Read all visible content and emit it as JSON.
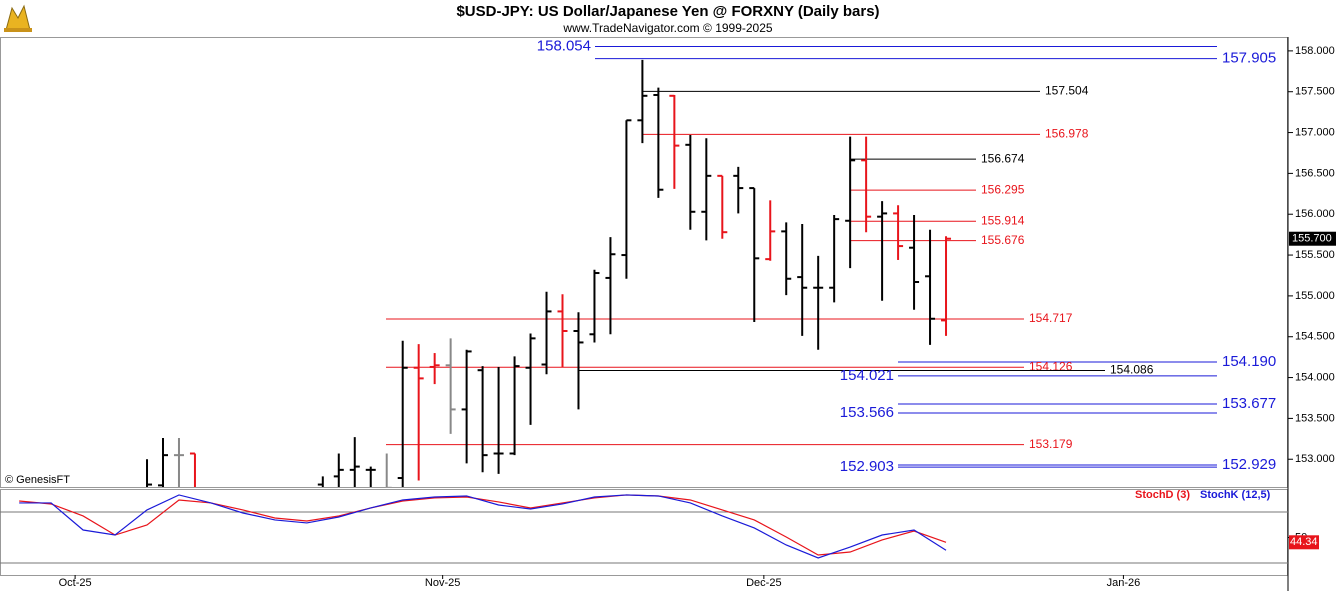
{
  "chart_data": [
    {
      "type": "ohlc",
      "title": "$USD-JPY:  US Dollar/Japanese Yen @ FORXNY  (Daily bars)",
      "subtitle": "www.TradeNavigator.com © 1999-2025",
      "credit": "© GenesisFT",
      "open": [
        152.6,
        152.68,
        153.05,
        153.07,
        null,
        null,
        null,
        null,
        null,
        null,
        null,
        152.69,
        152.79,
        152.87,
        152.87,
        152.6,
        152.77,
        154.12,
        154.13,
        154.15,
        153.61,
        154.09,
        153.07,
        153.07,
        154.12,
        154.16,
        154.81,
        154.57,
        154.53,
        155.22,
        155.5,
        157.15,
        157.46,
        157.45,
        156.85,
        156.03,
        156.47,
        156.47,
        156.32,
        155.45,
        155.79,
        155.23,
        155.1,
        155.1,
        155.92,
        156.66,
        155.97,
        156.01,
        155.59,
        155.24,
        154.7
      ],
      "high": [
        153.0,
        153.26,
        153.26,
        153.07,
        null,
        null,
        null,
        null,
        null,
        null,
        null,
        152.79,
        153.07,
        153.27,
        152.91,
        153.07,
        154.45,
        154.41,
        154.3,
        154.48,
        154.34,
        154.14,
        154.13,
        154.26,
        154.54,
        155.05,
        155.02,
        154.8,
        155.32,
        155.72,
        157.15,
        157.89,
        157.55,
        157.46,
        156.97,
        156.93,
        156.47,
        156.58,
        156.32,
        156.17,
        155.9,
        155.88,
        155.49,
        155.99,
        156.95,
        156.95,
        156.16,
        156.11,
        155.99,
        155.81,
        155.73
      ],
      "low": [
        152.4,
        152.4,
        152.4,
        152.4,
        null,
        null,
        null,
        null,
        null,
        null,
        null,
        152.4,
        152.4,
        152.4,
        152.4,
        152.4,
        152.4,
        152.74,
        153.92,
        153.31,
        152.95,
        152.84,
        152.82,
        153.05,
        153.42,
        154.04,
        154.13,
        153.61,
        154.43,
        154.53,
        155.21,
        156.87,
        156.2,
        156.31,
        155.81,
        155.68,
        155.7,
        156.01,
        154.68,
        155.43,
        155.01,
        154.51,
        154.34,
        154.92,
        155.34,
        155.78,
        154.94,
        155.44,
        154.83,
        154.4,
        154.51
      ],
      "close": [
        152.69,
        153.05,
        153.05,
        152.5,
        null,
        null,
        null,
        null,
        null,
        null,
        null,
        152.6,
        152.87,
        152.91,
        152.87,
        152.65,
        154.12,
        153.99,
        154.15,
        153.61,
        154.32,
        153.05,
        153.07,
        154.14,
        154.48,
        154.81,
        154.57,
        154.43,
        155.28,
        155.51,
        157.15,
        157.45,
        156.3,
        156.84,
        156.03,
        156.47,
        155.78,
        156.32,
        155.46,
        155.79,
        155.21,
        155.1,
        155.1,
        155.94,
        156.66,
        155.97,
        156.01,
        155.61,
        155.17,
        154.72,
        155.7
      ],
      "colors": [
        "#000000",
        "#000000",
        "#888888",
        "#e8141b",
        null,
        null,
        null,
        null,
        null,
        null,
        null,
        "#000000",
        "#000000",
        "#000000",
        "#000000",
        "#888888",
        "#000000",
        "#e8141b",
        "#e8141b",
        "#888888",
        "#000000",
        "#000000",
        "#000000",
        "#000000",
        "#000000",
        "#000000",
        "#e8141b",
        "#000000",
        "#000000",
        "#000000",
        "#000000",
        "#000000",
        "#000000",
        "#e8141b",
        "#000000",
        "#000000",
        "#e8141b",
        "#000000",
        "#000000",
        "#e8141b",
        "#000000",
        "#000000",
        "#000000",
        "#000000",
        "#000000",
        "#e8141b",
        "#000000",
        "#e8141b",
        "#000000",
        "#000000",
        "#e8141b"
      ],
      "xlim": [
        -9.2,
        71.4
      ],
      "ylim": [
        152.66,
        158.17
      ],
      "yticks": [
        {
          "value": 153,
          "label": "153.000"
        },
        {
          "value": 153.5,
          "label": "153.500"
        },
        {
          "value": 154,
          "label": "154.000"
        },
        {
          "value": 154.5,
          "label": "154.500"
        },
        {
          "value": 155,
          "label": "155.000"
        },
        {
          "value": 155.5,
          "label": "155.500"
        },
        {
          "value": 156,
          "label": "156.000"
        },
        {
          "value": 156.5,
          "label": "156.500"
        },
        {
          "value": 157,
          "label": "157.000"
        },
        {
          "value": 157.5,
          "label": "157.500"
        },
        {
          "value": 158,
          "label": "158.000"
        }
      ],
      "last_price": {
        "value": 155.7,
        "label": "155.700"
      },
      "levels": [
        {
          "value": 158.054,
          "label": "158.054",
          "color": "#1a1ad8"
        },
        {
          "value": 157.905,
          "label": "157.905",
          "color": "#1a1ad8"
        },
        {
          "value": 157.504,
          "label": "157.504",
          "color": "#000000"
        },
        {
          "value": 156.978,
          "label": "156.978",
          "color": "#e8141b"
        },
        {
          "value": 156.674,
          "label": "156.674",
          "color": "#000000"
        },
        {
          "value": 156.295,
          "label": "156.295",
          "color": "#e8141b"
        },
        {
          "value": 155.914,
          "label": "155.914",
          "color": "#e8141b"
        },
        {
          "value": 155.676,
          "label": "155.676",
          "color": "#e8141b"
        },
        {
          "value": 154.717,
          "label": "154.717",
          "color": "#e8141b"
        },
        {
          "value": 154.19,
          "label": "154.190",
          "color": "#1a1ad8"
        },
        {
          "value": 154.126,
          "label": "154.126",
          "color": "#e8141b"
        },
        {
          "value": 154.086,
          "label": "154.086",
          "color": "#000000"
        },
        {
          "value": 154.021,
          "label": "154.021",
          "color": "#1a1ad8"
        },
        {
          "value": 153.677,
          "label": "153.677",
          "color": "#1a1ad8"
        },
        {
          "value": 153.566,
          "label": "153.566",
          "color": "#1a1ad8"
        },
        {
          "value": 153.179,
          "label": "153.179",
          "color": "#e8141b"
        },
        {
          "value": 152.929,
          "label": "152.929",
          "color": "#1a1ad8"
        },
        {
          "value": 152.903,
          "label": "152.903",
          "color": "#1a1ad8"
        }
      ],
      "xticks": [
        {
          "value": -4.5,
          "label": "Oct-25"
        },
        {
          "value": 18.5,
          "label": "Nov-25"
        },
        {
          "value": 38.6,
          "label": "Dec-25"
        },
        {
          "value": 61.1,
          "label": "Jan-26"
        }
      ]
    },
    {
      "type": "line",
      "x": [
        -8,
        -6,
        -4,
        -2,
        0,
        2,
        4,
        6,
        8,
        10,
        12,
        14,
        16,
        18,
        20,
        22,
        24,
        26,
        28,
        30,
        32,
        34,
        36,
        38,
        40,
        42,
        44,
        46,
        48,
        50
      ],
      "series": [
        {
          "name": "StochD (3)",
          "color": "#e8141b",
          "values": [
            92.9,
            89.4,
            75.3,
            52.9,
            64.7,
            94.1,
            90.6,
            82.4,
            72.9,
            69.4,
            75.3,
            84.7,
            92.9,
            96.5,
            97.6,
            91.8,
            84.7,
            90.6,
            96.5,
            100,
            98.8,
            94.1,
            82.4,
            70.6,
            50.6,
            29.4,
            32.9,
            47.1,
            57.6,
            44.34
          ]
        },
        {
          "name": "StochK (12,5)",
          "color": "#1a1ad8",
          "values": [
            90.6,
            90.6,
            58.8,
            52.9,
            82.4,
            100,
            90.6,
            78.8,
            70.6,
            67.1,
            74.1,
            84.7,
            94.1,
            97.6,
            98.8,
            88.2,
            83.5,
            89.4,
            97.6,
            100,
            98.8,
            90.6,
            75.3,
            61.2,
            41.2,
            25.9,
            38.8,
            52.9,
            58.8,
            35
          ]
        }
      ],
      "xlim": [
        -9.2,
        71.4
      ],
      "ylim": [
        5.9,
        107
      ],
      "yticks": [
        50
      ],
      "grid_levels": [
        20,
        80
      ],
      "last_value": 44.34
    }
  ]
}
